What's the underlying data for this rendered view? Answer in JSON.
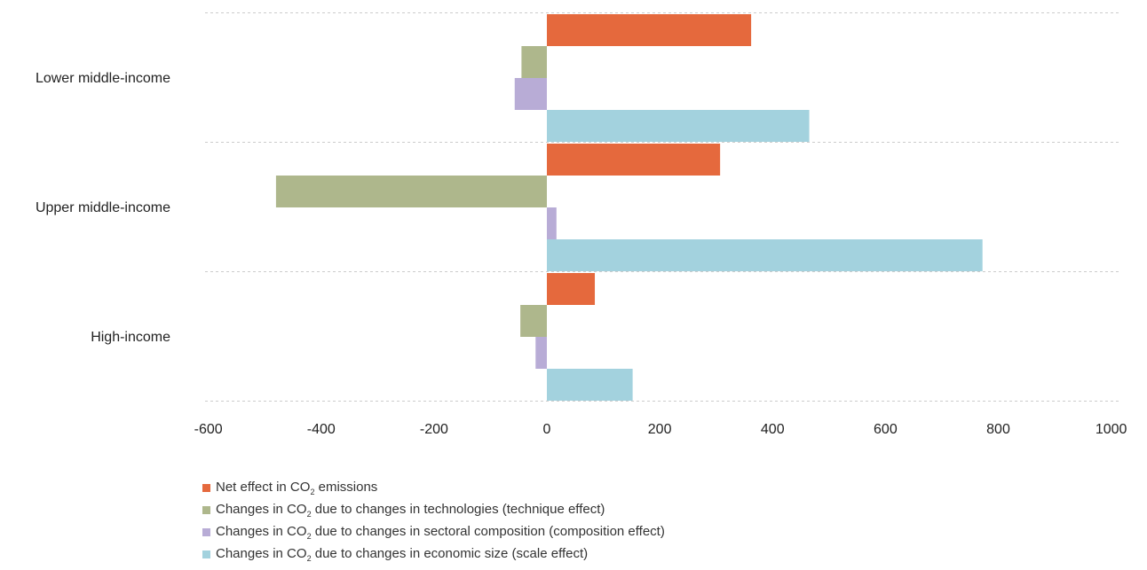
{
  "chart_data": {
    "type": "bar",
    "orientation": "horizontal",
    "categories": [
      "Lower middle-income",
      "Upper middle-income",
      "High-income"
    ],
    "series": [
      {
        "name": "Net effect in CO₂ emissions",
        "values": [
          362,
          307,
          85
        ],
        "color": "#E5693D"
      },
      {
        "name": "Changes in CO₂ due to changes in technologies (technique effect)",
        "values": [
          -45,
          -480,
          -47
        ],
        "color": "#AEB78C"
      },
      {
        "name": "Changes in CO₂ due to changes in sectoral composition (composition effect)",
        "values": [
          -57,
          17,
          -20
        ],
        "color": "#B8ACD6"
      },
      {
        "name": "Changes in CO₂ due to changes in economic size (scale effect)",
        "values": [
          465,
          772,
          152
        ],
        "color": "#A3D2DE"
      }
    ],
    "xlim": [
      -600,
      1000
    ],
    "xticks": [
      -600,
      -400,
      -200,
      0,
      200,
      400,
      600,
      800,
      1000
    ],
    "grid": true,
    "legend_position": "bottom-left",
    "title": "",
    "xlabel": "",
    "ylabel": ""
  },
  "legend": [
    {
      "prefix": "Net effect in CO",
      "sub": "2",
      "suffix": " emissions"
    },
    {
      "prefix": "Changes in CO",
      "sub": "2",
      "suffix": " due to changes in technologies (technique effect)"
    },
    {
      "prefix": "Changes in CO",
      "sub": "2",
      "suffix": " due to changes in sectoral composition (composition effect)"
    },
    {
      "prefix": "Changes in CO",
      "sub": "2",
      "suffix": " due to changes in economic size (scale effect)"
    }
  ]
}
